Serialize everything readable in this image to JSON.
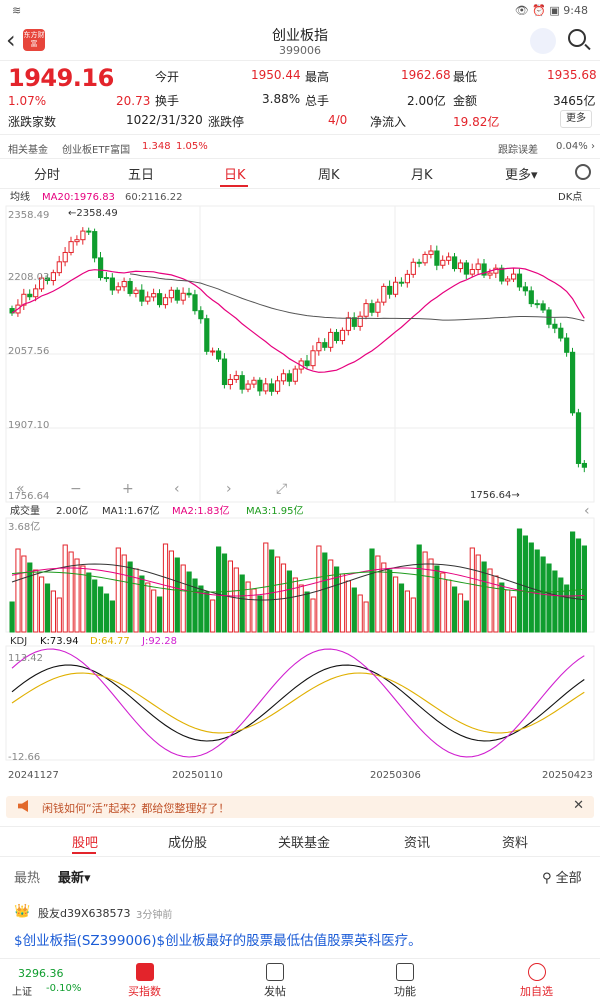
{
  "status": {
    "time": "9:48",
    "battery": "100"
  },
  "header": {
    "logo": "东方财富",
    "title": "创业板指",
    "code": "399006"
  },
  "quote": {
    "price": "1949.16",
    "pct": "1.07%",
    "chg": "20.73",
    "open_label": "今开",
    "open": "1950.44",
    "high_label": "最高",
    "high": "1962.68",
    "low_label": "最低",
    "low": "1935.68",
    "turnover_label": "换手",
    "turnover": "3.88%",
    "volume_label": "总手",
    "volume": "2.00亿",
    "amount_label": "金额",
    "amount": "3465亿",
    "adv_label": "涨跌家数",
    "adv": "1022/31/320",
    "limit_label": "涨跌停",
    "limit": "4/0",
    "flow_label": "净流入",
    "flow": "19.82亿",
    "more": "更多"
  },
  "fund": {
    "label": "相关基金",
    "name": "创业板ETF富国",
    "price": "1.348",
    "pct": "1.05%",
    "err_label": "跟踪误差",
    "err": "0.04%"
  },
  "tabs": [
    "分时",
    "五日",
    "日K",
    "周K",
    "月K",
    "更多"
  ],
  "chart_labels": {
    "ma_label": "均线",
    "ma20": "MA20:1976.83",
    "ma60": "60:2116.22",
    "dk": "DK点",
    "y_top": "2358.49",
    "y2": "2208.03",
    "y3": "2057.56",
    "y4": "1907.10",
    "y_bot": "1756.64",
    "max_mark": "2358.49",
    "min_mark": "1756.64",
    "vol_label": "成交量",
    "vol": "2.00亿",
    "vma1": "MA1:1.67亿",
    "vma2": "MA2:1.83亿",
    "vma3": "MA3:1.95亿",
    "vol_top": "3.68亿",
    "kdj_label": "KDJ",
    "k": "K:73.94",
    "d": "D:64.77",
    "j": "J:92.28",
    "kdj_top": "113.42",
    "kdj_bot": "-12.66",
    "dates": [
      "20241127",
      "20250110",
      "20250306",
      "20250423"
    ]
  },
  "banner": {
    "text": "闲钱如何“活”起来？都给您整理好了！"
  },
  "news_tabs": [
    "股吧",
    "成份股",
    "关联基金",
    "资讯",
    "资料"
  ],
  "sort": {
    "hot": "最热",
    "new": "最新",
    "all": "全部"
  },
  "post": {
    "user": "股友d39X638573",
    "time": "3分钟前",
    "body": "$创业板指(SZ399006)$创业板最好的股票最低估值股票英科医疗。"
  },
  "bottom": {
    "index": "3296.36",
    "index_name": "上证",
    "index_pct": "-0.10%",
    "nav": [
      "买指数",
      "发帖",
      "功能",
      "加自选"
    ]
  },
  "colors": {
    "up": "#e3242b",
    "down": "#0f9d2e",
    "ma20": "#e6007e",
    "ma60": "#555555"
  }
}
